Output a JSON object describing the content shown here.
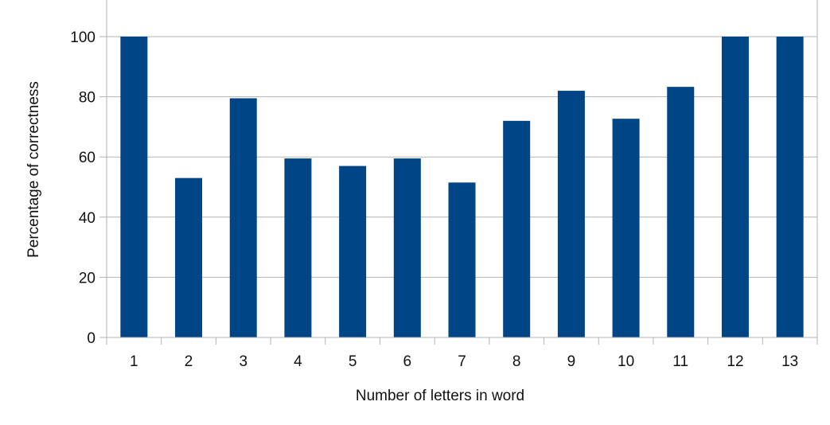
{
  "chart_data": {
    "type": "bar",
    "categories": [
      "1",
      "2",
      "3",
      "4",
      "5",
      "6",
      "7",
      "8",
      "9",
      "10",
      "11",
      "12",
      "13"
    ],
    "values": [
      100,
      53,
      79.5,
      59.5,
      57,
      59.5,
      51.5,
      72,
      82,
      72.7,
      83.3,
      100,
      100
    ],
    "yticks": [
      "0",
      "20",
      "40",
      "60",
      "80",
      "100"
    ],
    "title": "",
    "xlabel": "Number of letters in word",
    "ylabel": "Percentage of correctness",
    "ylim": [
      0,
      100
    ],
    "grid": true,
    "colors": {
      "bar": "#004586",
      "grid": "#b3b3b3",
      "axis": "#b3b3b3"
    }
  }
}
